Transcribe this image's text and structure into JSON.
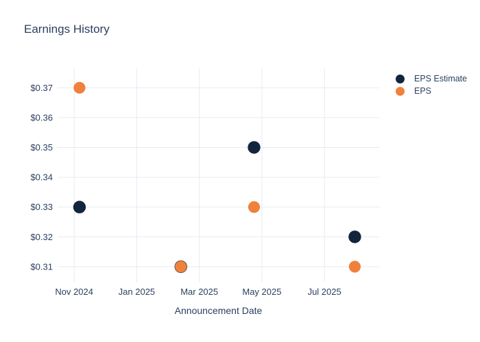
{
  "page": {
    "background_color": "#ffffff"
  },
  "chart_data": {
    "type": "scatter",
    "title": "Earnings History",
    "xlabel": "Announcement Date",
    "ylabel": "",
    "grid": true,
    "legend_position": "right",
    "colors": {
      "text": "#2a3f5f",
      "grid": "#e6ebf2",
      "background": "#ffffff"
    },
    "x_axis": {
      "unit": "months since 2024-11-01",
      "range": [
        -0.53,
        9.75
      ],
      "ticks": [
        {
          "label": "Nov 2024",
          "m": 0
        },
        {
          "label": "Jan 2025",
          "m": 2
        },
        {
          "label": "Mar 2025",
          "m": 4
        },
        {
          "label": "May 2025",
          "m": 6
        },
        {
          "label": "Jul 2025",
          "m": 8
        }
      ]
    },
    "y_axis": {
      "range": [
        0.3047,
        0.3765
      ],
      "tick_prefix": "$",
      "ticks": [
        {
          "label": "$0.37",
          "v": 0.37
        },
        {
          "label": "$0.36",
          "v": 0.36
        },
        {
          "label": "$0.35",
          "v": 0.35
        },
        {
          "label": "$0.34",
          "v": 0.34
        },
        {
          "label": "$0.33",
          "v": 0.33
        },
        {
          "label": "$0.32",
          "v": 0.32
        },
        {
          "label": "$0.31",
          "v": 0.31
        }
      ]
    },
    "series": [
      {
        "name": "EPS Estimate",
        "color": "#13253d",
        "marker_radius": 9.2,
        "points": [
          {
            "m": 0.17,
            "v": 0.33,
            "approx_date": "2024-11-06"
          },
          {
            "m": 3.41,
            "v": 0.31,
            "approx_date": "2025-02-12"
          },
          {
            "m": 5.75,
            "v": 0.35,
            "approx_date": "2025-04-23"
          },
          {
            "m": 8.97,
            "v": 0.32,
            "approx_date": "2025-07-30"
          }
        ]
      },
      {
        "name": "EPS",
        "color": "#f0813c",
        "marker_radius": 8.6,
        "points": [
          {
            "m": 0.17,
            "v": 0.37,
            "approx_date": "2024-11-06"
          },
          {
            "m": 3.41,
            "v": 0.31,
            "approx_date": "2025-02-12"
          },
          {
            "m": 5.75,
            "v": 0.33,
            "approx_date": "2025-04-23"
          },
          {
            "m": 8.97,
            "v": 0.31,
            "approx_date": "2025-07-30"
          }
        ]
      }
    ]
  }
}
